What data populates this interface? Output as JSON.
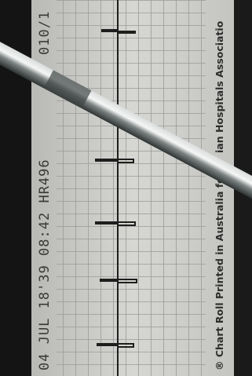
{
  "paper": {
    "timestamp": "04 JUL 18'39 08:42 HR496",
    "strip_code": "010/1",
    "imprint_start": "® Chart Roll Printed in Australia fo",
    "imprint_end": "ian Hospitals Associatio"
  }
}
